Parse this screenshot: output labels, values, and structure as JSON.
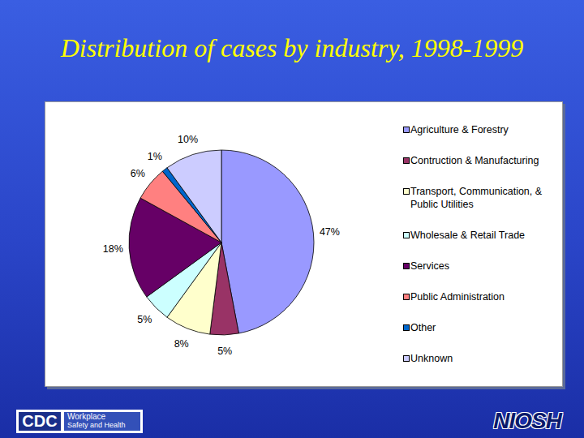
{
  "chart_data": {
    "type": "pie",
    "title": "Distribution of cases by industry, 1998-1999",
    "categories": [
      "Agriculture & Forestry",
      "Contruction & Manufacturing",
      "Transport, Communication, & Public Utilities",
      "Wholesale & Retail Trade",
      "Services",
      "Public Administration",
      "Other",
      "Unknown"
    ],
    "values": [
      47,
      5,
      8,
      5,
      18,
      6,
      1,
      10
    ],
    "value_labels": [
      "47%",
      "5%",
      "8%",
      "5%",
      "18%",
      "6%",
      "1%",
      "10%"
    ],
    "colors": [
      "#9999ff",
      "#993366",
      "#ffffcc",
      "#ccffff",
      "#660066",
      "#ff8080",
      "#0066cc",
      "#ccccff"
    ],
    "data_labels": true,
    "legend": "right"
  },
  "footer": {
    "cdc": "CDC",
    "workplace": "Workplace",
    "safety": "Safety and Health",
    "niosh": "NIOSH"
  }
}
